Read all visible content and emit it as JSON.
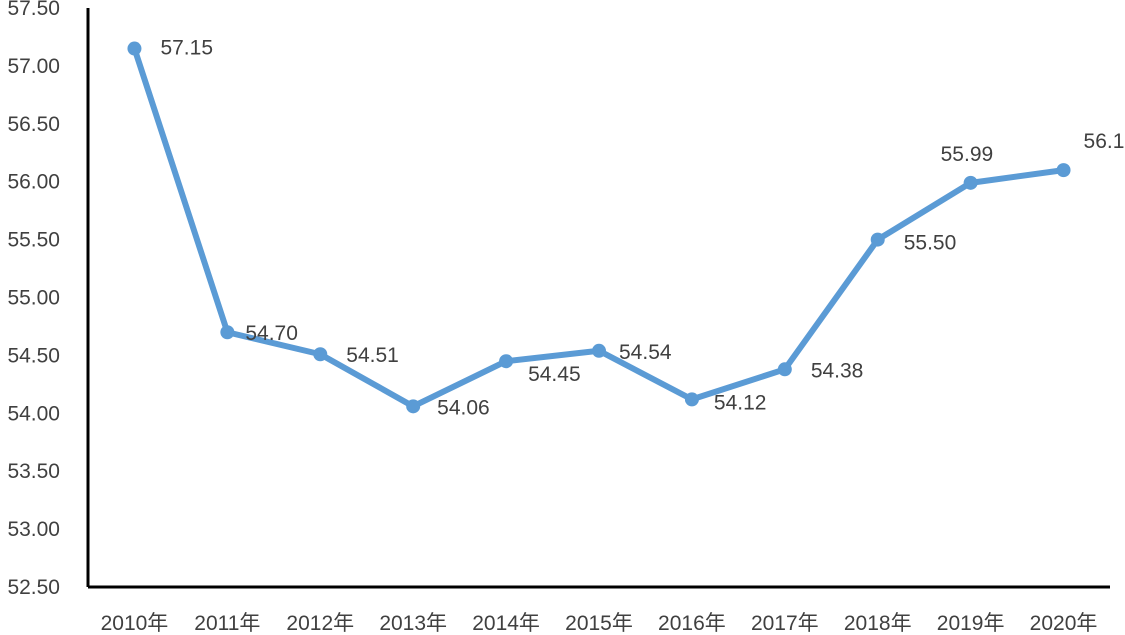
{
  "chart_data": {
    "type": "line",
    "title": "",
    "xlabel": "",
    "ylabel": "",
    "categories": [
      "2010年",
      "2011年",
      "2012年",
      "2013年",
      "2014年",
      "2015年",
      "2016年",
      "2017年",
      "2018年",
      "2019年",
      "2020年"
    ],
    "series": [
      {
        "values": [
          57.15,
          54.7,
          54.51,
          54.06,
          54.45,
          54.54,
          54.12,
          54.38,
          55.5,
          55.99,
          56.1
        ],
        "labels": [
          "57.15",
          "54.70",
          "54.51",
          "54.06",
          "54.45",
          "54.54",
          "54.12",
          "54.38",
          "55.50",
          "55.99",
          "56.10"
        ],
        "color": "#5b9bd5"
      }
    ],
    "ylim": [
      52.5,
      57.5
    ],
    "yticks": [
      "52.50",
      "53.00",
      "53.50",
      "54.00",
      "54.50",
      "55.00",
      "55.50",
      "56.00",
      "56.50",
      "57.00",
      "57.50"
    ],
    "grid": false,
    "legend": "none"
  }
}
